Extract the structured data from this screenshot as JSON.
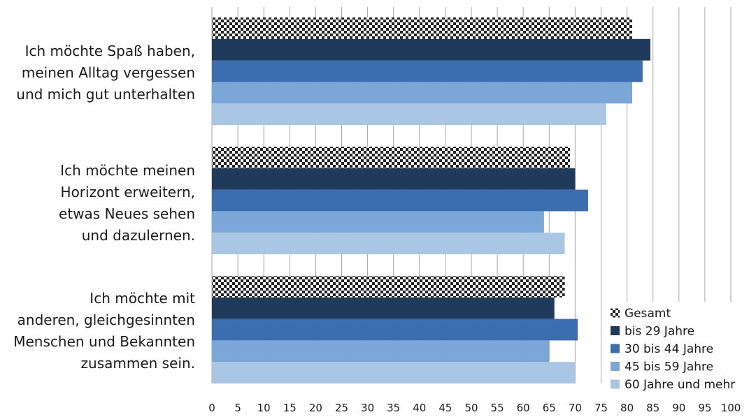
{
  "chart_data": {
    "type": "bar",
    "orientation": "horizontal",
    "categories": [
      [
        "Ich möchte Spaß haben,",
        "meinen Alltag vergessen",
        "und mich gut unterhalten"
      ],
      [
        "Ich möchte meinen",
        "Horizont erweitern,",
        "etwas Neues sehen",
        "und dazulernen."
      ],
      [
        "Ich möchte mit",
        "anderen, gleichgesinnten",
        "Menschen und Bekannten",
        "zusammen sein."
      ]
    ],
    "series": [
      {
        "name": "Gesamt",
        "pattern": "checkerboard",
        "color": "#222222",
        "values": [
          81,
          69,
          68
        ]
      },
      {
        "name": "bis 29 Jahre",
        "color": "#1f3a5a",
        "values": [
          84.5,
          70,
          66
        ]
      },
      {
        "name": "30 bis 44 Jahre",
        "color": "#3b6eb0",
        "values": [
          83,
          72.5,
          70.5
        ]
      },
      {
        "name": "45 bis 59 Jahre",
        "color": "#7aa6d8",
        "values": [
          81,
          64,
          65
        ]
      },
      {
        "name": "60 Jahre und mehr",
        "color": "#a9c6e4",
        "values": [
          76,
          68,
          70
        ]
      }
    ],
    "xlim": [
      0,
      100
    ],
    "xticks": [
      0,
      5,
      10,
      15,
      20,
      25,
      30,
      35,
      40,
      45,
      50,
      55,
      60,
      65,
      70,
      75,
      80,
      85,
      90,
      95,
      100
    ],
    "grid": "vertical",
    "legend_position": "bottom-right",
    "title": "",
    "xlabel": "",
    "ylabel": ""
  }
}
